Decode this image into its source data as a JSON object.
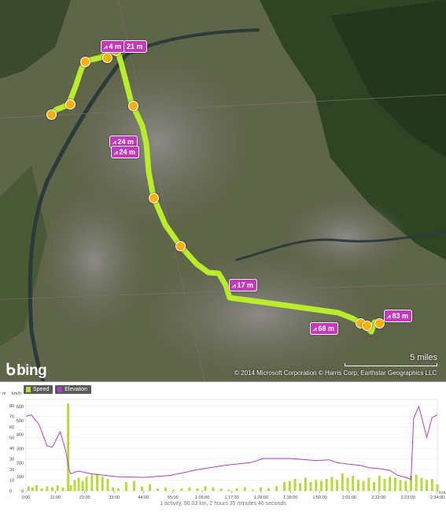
{
  "map": {
    "provider_logo": "bing",
    "copyright": "© 2014 Microsoft Corporation   © Harris Corp, Earthstar Geographics LLC",
    "scale_label": "5 miles",
    "elevation_markers": [
      {
        "label": "4 m"
      },
      {
        "label": "21 m"
      },
      {
        "label": "24 m"
      },
      {
        "label": "24 m"
      },
      {
        "label": "17 m"
      },
      {
        "label": "68 m"
      },
      {
        "label": "83 m"
      }
    ],
    "route_color": "#b9ec2b",
    "pin_color": "#f5b10d",
    "marker_color": "#c23bb8"
  },
  "chart": {
    "legend": [
      {
        "name": "Speed",
        "color": "#b6e12d"
      },
      {
        "name": "Elevation",
        "color": "#b03fc0"
      }
    ],
    "left_axis_unit": "m",
    "speed_axis_unit": "km/h",
    "x_axis_unit": "h:m:s",
    "summary": "1 activity, 96.03 km, 2 hours 35 minutes 46 seconds"
  },
  "chart_data": {
    "type": "bar",
    "x_ticks": [
      "0:00",
      "11:00",
      "22:00",
      "33:00",
      "44:00",
      "55:00",
      "1:06:00",
      "1:17:00",
      "1:28:00",
      "1:39:00",
      "1:50:00",
      "2:01:00",
      "2:12:00",
      "2:23:00",
      "2:34:00"
    ],
    "y_left_ticks": [
      0,
      100,
      200,
      300,
      400,
      500,
      600
    ],
    "y_speed_ticks": [
      0,
      10,
      20,
      30,
      40,
      50,
      60,
      70,
      80
    ],
    "ylim_elevation": [
      0,
      650
    ],
    "ylim_speed": [
      0,
      86
    ],
    "xlim_minutes": [
      0,
      156
    ],
    "series": [
      {
        "name": "Elevation",
        "style": "line",
        "x_minutes": [
          0,
          2,
          5,
          8,
          10,
          13,
          15,
          16.5,
          17,
          18,
          20,
          25,
          35,
          45,
          55,
          65,
          75,
          85,
          90,
          100,
          110,
          115,
          118,
          122,
          127,
          130,
          135,
          138,
          141,
          144,
          146,
          147,
          148,
          149,
          152,
          154,
          156
        ],
        "values": [
          530,
          540,
          470,
          320,
          310,
          420,
          290,
          140,
          120,
          130,
          140,
          120,
          100,
          95,
          110,
          150,
          180,
          200,
          230,
          230,
          215,
          220,
          200,
          190,
          180,
          165,
          155,
          145,
          110,
          95,
          80,
          510,
          560,
          600,
          380,
          520,
          540
        ]
      },
      {
        "name": "Speed",
        "style": "bar",
        "x_minutes": [
          1,
          2.5,
          4,
          6,
          8,
          10,
          12,
          14,
          16,
          17,
          18.5,
          20,
          21.5,
          23,
          25,
          27,
          29,
          31,
          33,
          35,
          38,
          41,
          44,
          47,
          50,
          53,
          56,
          59,
          62,
          65,
          68,
          71,
          74,
          77,
          80,
          83,
          86,
          89,
          92,
          95,
          98,
          100,
          102,
          104,
          106,
          108,
          110,
          112,
          114,
          116,
          118,
          120,
          122,
          124,
          126,
          128,
          130,
          132,
          134,
          136,
          138,
          140,
          142,
          144,
          146,
          148,
          150,
          152,
          154,
          156
        ],
        "values": [
          4,
          3,
          5,
          2,
          4,
          3,
          5,
          3,
          82,
          5,
          10,
          12,
          9,
          13,
          15,
          16,
          13,
          11,
          3,
          2,
          8,
          9,
          4,
          6,
          2,
          3,
          1,
          2,
          3,
          2,
          4,
          3,
          2,
          1,
          2,
          3,
          1,
          3,
          2,
          4,
          8,
          9,
          11,
          7,
          12,
          8,
          10,
          9,
          11,
          13,
          10,
          16,
          12,
          14,
          10,
          9,
          12,
          8,
          14,
          11,
          13,
          12,
          10,
          9,
          14,
          15,
          12,
          10,
          11,
          6
        ]
      }
    ]
  }
}
